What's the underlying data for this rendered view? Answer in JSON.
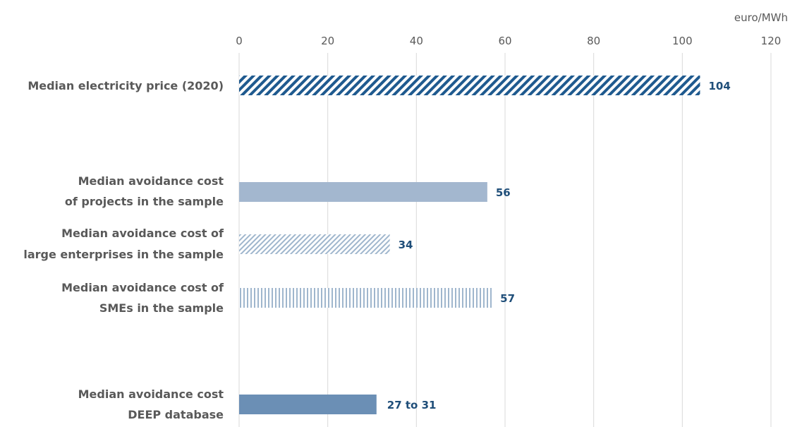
{
  "chart_data": {
    "type": "bar",
    "orientation": "horizontal",
    "unit_label": "euro/MWh",
    "xlim": [
      0,
      120
    ],
    "ticks": [
      "0",
      "20",
      "40",
      "60",
      "80",
      "100",
      "120"
    ],
    "grid": true,
    "categories": [
      [
        "Median electricity price (2020)"
      ],
      [
        "Median avoidance cost",
        "of projects in the sample"
      ],
      [
        "Median avoidance cost of",
        "large enterprises in the sample"
      ],
      [
        "Median avoidance cost of",
        "SMEs in the sample"
      ],
      [
        "Median avoidance cost",
        "DEEP database"
      ]
    ],
    "values": [
      104,
      56,
      34,
      57,
      31
    ],
    "range_low": [
      null,
      null,
      null,
      null,
      27
    ],
    "value_labels": [
      "104",
      "56",
      "34",
      "57",
      "27 to 31"
    ],
    "styles": [
      {
        "fill": "diagonal-hatch",
        "color": "#1f5a8f"
      },
      {
        "fill": "solid",
        "color": "#a3b7cf"
      },
      {
        "fill": "diagonal-hatch-light",
        "color": "#9fb6cd"
      },
      {
        "fill": "vertical-hatch",
        "color": "#9fb6cd"
      },
      {
        "fill": "solid",
        "color": "#6b8fb5"
      }
    ]
  }
}
